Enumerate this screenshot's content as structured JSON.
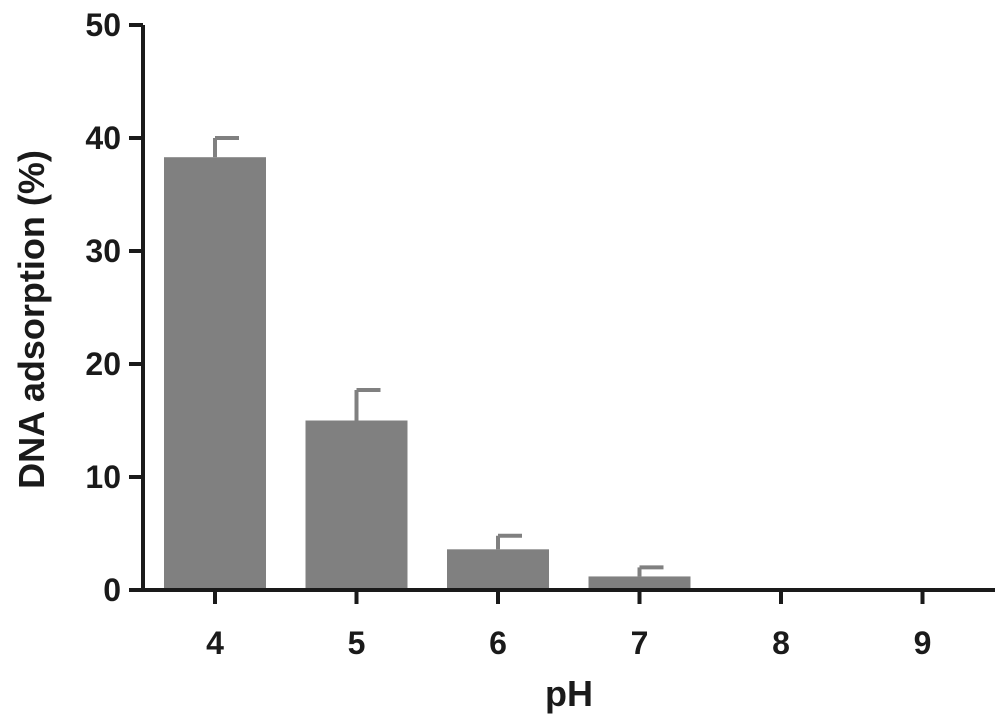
{
  "chart_data": {
    "type": "bar",
    "xlabel": "pH",
    "ylabel": "DNA adsorption (%)",
    "categories": [
      "4",
      "5",
      "6",
      "7",
      "8",
      "9"
    ],
    "values": [
      38.3,
      15.0,
      3.6,
      1.2,
      0,
      0
    ],
    "errors": [
      1.7,
      2.7,
      1.2,
      0.8,
      0,
      0
    ],
    "ylim": [
      0,
      50
    ],
    "yticks": [
      0,
      10,
      20,
      30,
      40,
      50
    ],
    "grid": false,
    "bar_color": "#808080"
  }
}
